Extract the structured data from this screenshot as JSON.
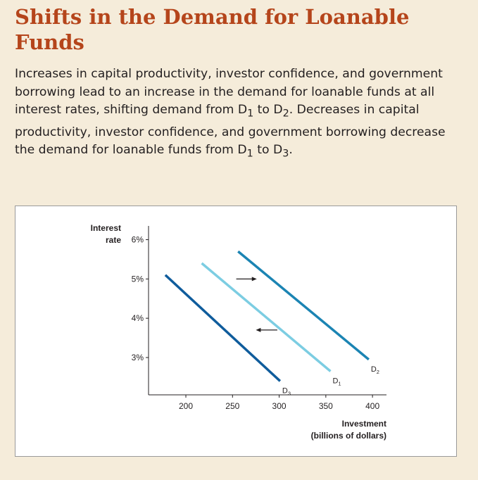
{
  "header": {
    "title": "Shifts in the Demand for Loanable Funds"
  },
  "caption": {
    "text_before_1": "Increases in capital productivity, investor confidence, and government borrowing lead to an increase in the demand for loanable funds at all interest rates, shifting demand from D",
    "sub_1a": "1",
    "text_to_1": " to D",
    "sub_1b": "2",
    "text_mid": ". Decreases in capital productivity, investor confidence, and government borrowing decrease the demand for loanable funds from D",
    "sub_2a": "1",
    "text_to_2": " to D",
    "sub_2b": "3",
    "text_end": "."
  },
  "chart_data": {
    "type": "line",
    "ylabel_line1": "Interest",
    "ylabel_line2": "rate",
    "xlabel_line1": "Investment",
    "xlabel_line2": "(billions of dollars)",
    "xlim": [
      160,
      415
    ],
    "ylim": [
      2.05,
      6.35
    ],
    "x_ticks": [
      200,
      250,
      300,
      350,
      400
    ],
    "x_tick_labels": [
      "200",
      "250",
      "300",
      "350",
      "400"
    ],
    "y_ticks": [
      3,
      4,
      5,
      6
    ],
    "y_tick_labels": [
      "3%",
      "4%",
      "5%",
      "6%"
    ],
    "grid": false,
    "series": [
      {
        "name": "D",
        "subscript": "1",
        "color": "#7ccde2",
        "x": [
          217,
          355
        ],
        "y": [
          5.4,
          2.65
        ]
      },
      {
        "name": "D",
        "subscript": "2",
        "color": "#1b84b3",
        "x": [
          256,
          396
        ],
        "y": [
          5.7,
          2.95
        ]
      },
      {
        "name": "D",
        "subscript": "3",
        "color": "#0f5c9c",
        "x": [
          178,
          301
        ],
        "y": [
          5.1,
          2.4
        ]
      }
    ],
    "arrows": [
      {
        "direction": "right",
        "from": [
          254,
          5.0
        ],
        "to": [
          276,
          5.0
        ]
      },
      {
        "direction": "left",
        "from": [
          298,
          3.7
        ],
        "to": [
          275,
          3.7
        ]
      }
    ]
  }
}
